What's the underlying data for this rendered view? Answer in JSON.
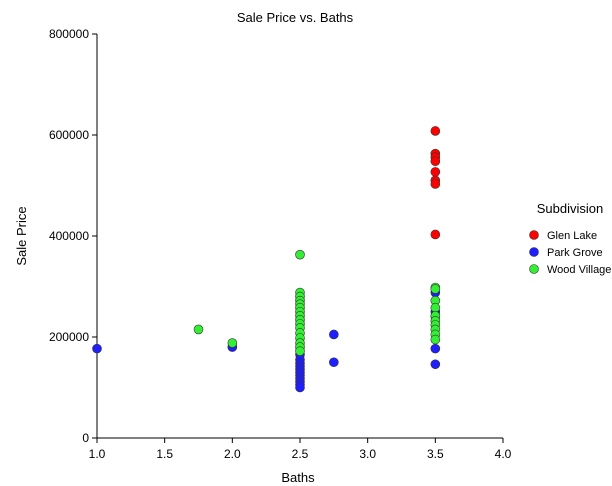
{
  "chart_data": {
    "type": "scatter",
    "title": "Sale Price vs. Baths",
    "xlabel": "Baths",
    "ylabel": "Sale Price",
    "xlim": [
      1.0,
      4.0
    ],
    "ylim": [
      0,
      800000
    ],
    "x_ticks": [
      "1.0",
      "1.5",
      "2.0",
      "2.5",
      "3.0",
      "3.5",
      "4.0"
    ],
    "y_ticks": [
      "0",
      "200000",
      "400000",
      "600000",
      "800000"
    ],
    "x_tick_values": [
      1.0,
      1.5,
      2.0,
      2.5,
      3.0,
      3.5,
      4.0
    ],
    "y_tick_values": [
      0,
      200000,
      400000,
      600000,
      800000
    ],
    "grid": false,
    "legend": {
      "title": "Subdivision",
      "placement": "right"
    },
    "series": [
      {
        "name": "Glen Lake",
        "color": "#ff0000",
        "points": [
          {
            "x": 3.5,
            "y": 608000
          },
          {
            "x": 3.5,
            "y": 563000
          },
          {
            "x": 3.5,
            "y": 556000
          },
          {
            "x": 3.5,
            "y": 548000
          },
          {
            "x": 3.5,
            "y": 527000
          },
          {
            "x": 3.5,
            "y": 510000
          },
          {
            "x": 3.5,
            "y": 503000
          },
          {
            "x": 3.5,
            "y": 403000
          }
        ]
      },
      {
        "name": "Park Grove",
        "color": "#1e1eff",
        "points": [
          {
            "x": 1.0,
            "y": 177000
          },
          {
            "x": 2.0,
            "y": 180000
          },
          {
            "x": 2.5,
            "y": 165000
          },
          {
            "x": 2.5,
            "y": 155000
          },
          {
            "x": 2.5,
            "y": 148000
          },
          {
            "x": 2.5,
            "y": 142000
          },
          {
            "x": 2.5,
            "y": 136000
          },
          {
            "x": 2.5,
            "y": 130000
          },
          {
            "x": 2.5,
            "y": 124000
          },
          {
            "x": 2.5,
            "y": 118000
          },
          {
            "x": 2.5,
            "y": 112000
          },
          {
            "x": 2.5,
            "y": 106000
          },
          {
            "x": 2.5,
            "y": 100000
          },
          {
            "x": 2.75,
            "y": 205000
          },
          {
            "x": 2.75,
            "y": 150000
          },
          {
            "x": 3.5,
            "y": 288000
          },
          {
            "x": 3.5,
            "y": 250000
          },
          {
            "x": 3.5,
            "y": 240000
          },
          {
            "x": 3.5,
            "y": 177000
          },
          {
            "x": 3.5,
            "y": 146000
          }
        ]
      },
      {
        "name": "Wood Village",
        "color": "#33ee33",
        "points": [
          {
            "x": 1.75,
            "y": 215000
          },
          {
            "x": 2.0,
            "y": 188000
          },
          {
            "x": 2.5,
            "y": 363000
          },
          {
            "x": 2.5,
            "y": 288000
          },
          {
            "x": 2.5,
            "y": 280000
          },
          {
            "x": 2.5,
            "y": 272000
          },
          {
            "x": 2.5,
            "y": 265000
          },
          {
            "x": 2.5,
            "y": 258000
          },
          {
            "x": 2.5,
            "y": 250000
          },
          {
            "x": 2.5,
            "y": 242000
          },
          {
            "x": 2.5,
            "y": 234000
          },
          {
            "x": 2.5,
            "y": 226000
          },
          {
            "x": 2.5,
            "y": 218000
          },
          {
            "x": 2.5,
            "y": 208000
          },
          {
            "x": 2.5,
            "y": 198000
          },
          {
            "x": 2.5,
            "y": 188000
          },
          {
            "x": 2.5,
            "y": 180000
          },
          {
            "x": 2.5,
            "y": 172000
          },
          {
            "x": 3.5,
            "y": 298000
          },
          {
            "x": 3.5,
            "y": 295000
          },
          {
            "x": 3.5,
            "y": 272000
          },
          {
            "x": 3.5,
            "y": 258000
          },
          {
            "x": 3.5,
            "y": 242000
          },
          {
            "x": 3.5,
            "y": 232000
          },
          {
            "x": 3.5,
            "y": 224000
          },
          {
            "x": 3.5,
            "y": 215000
          },
          {
            "x": 3.5,
            "y": 205000
          },
          {
            "x": 3.5,
            "y": 195000
          }
        ]
      }
    ]
  }
}
